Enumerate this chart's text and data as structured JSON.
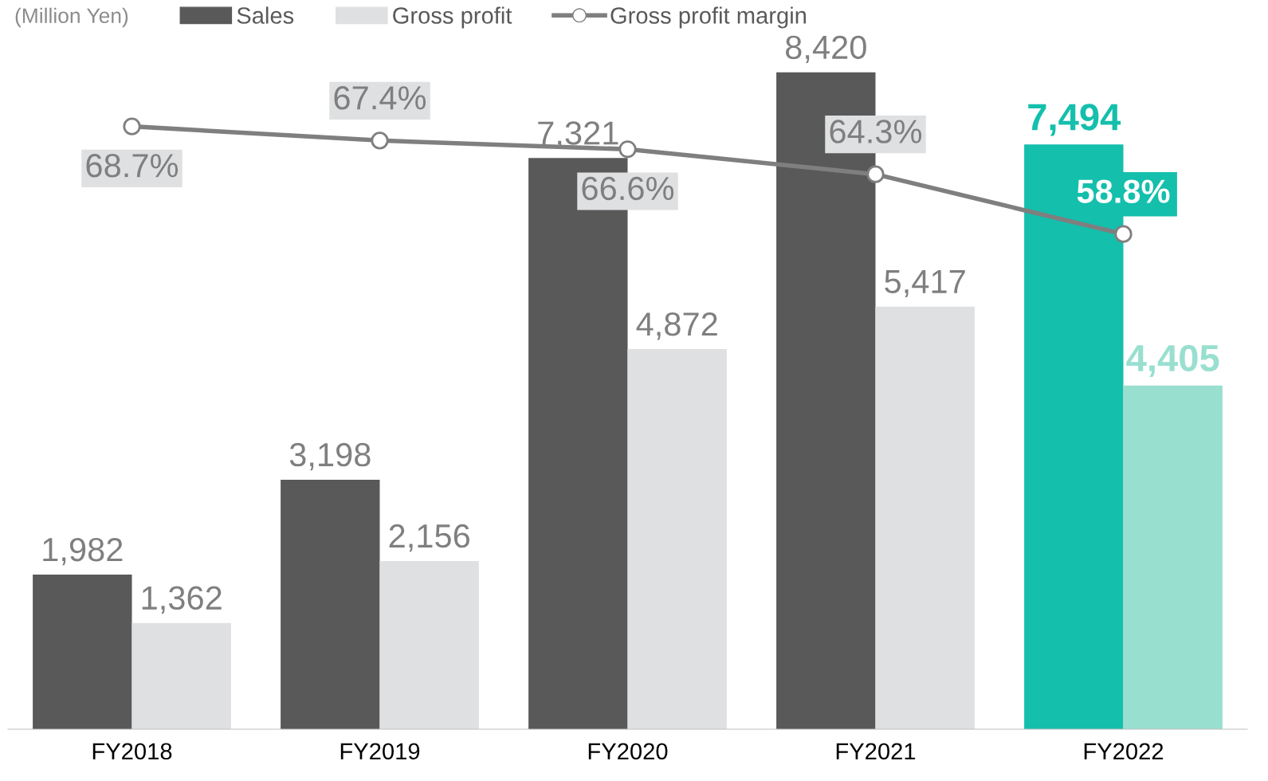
{
  "chart_data": {
    "type": "bar",
    "categories": [
      "FY2018",
      "FY2019",
      "FY2020",
      "FY2021",
      "FY2022"
    ],
    "tick_labels": "x",
    "grid": false,
    "legend": "top left",
    "annotations": [
      "(Million Yen)"
    ],
    "series": [
      {
        "name": "Sales",
        "color": "#595959",
        "colors": [
          "#595959",
          "#595959",
          "#595959",
          "#595959",
          "#14bfac"
        ],
        "values": [
          1982,
          3198,
          7321,
          8420,
          7494
        ],
        "value_labels": [
          "1,982",
          "3,198",
          "7,321",
          "8,420",
          "7,494"
        ]
      },
      {
        "name": "Gross profit",
        "color": "#dfe0e2",
        "colors": [
          "#dfe0e2",
          "#dfe0e2",
          "#dfe0e2",
          "#dfe0e2",
          "#99dfd0"
        ],
        "values": [
          1362,
          2156,
          4872,
          5417,
          4405
        ],
        "value_labels": [
          "1,362",
          "2,156",
          "4,872",
          "5,417",
          "4,405"
        ]
      },
      {
        "name": "Gross profit margin",
        "type": "line",
        "axis": "y2",
        "color": "#7f7f7f",
        "marker": "circle",
        "line_style": "solid",
        "values": [
          68.7,
          67.4,
          66.6,
          64.3,
          58.8
        ],
        "value_labels": [
          "68.7%",
          "67.4%",
          "66.6%",
          "64.3%",
          "58.8%"
        ]
      }
    ]
  }
}
